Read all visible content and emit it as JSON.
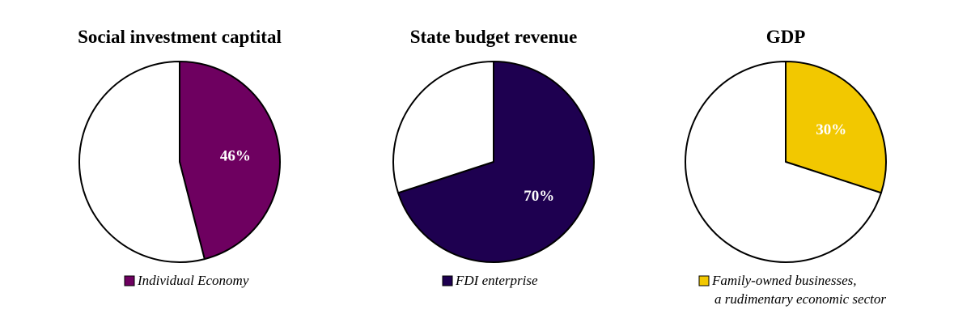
{
  "chart_data": [
    {
      "type": "pie",
      "title": "Social investment captital",
      "slices": [
        {
          "name": "Individual Economy",
          "value": 46,
          "label": "46%",
          "color": "#6e0060"
        },
        {
          "name": "",
          "value": 54,
          "label": "",
          "color": "#ffffff"
        }
      ],
      "legend": {
        "placement": "bottom",
        "entries": [
          {
            "lines": [
              "Individual Economy"
            ],
            "color": "#6e0060"
          }
        ]
      }
    },
    {
      "type": "pie",
      "title": "State budget revenue",
      "slices": [
        {
          "name": "FDI enterprise",
          "value": 70,
          "label": "70%",
          "color": "#1e0050"
        },
        {
          "name": "",
          "value": 30,
          "label": "",
          "color": "#ffffff"
        }
      ],
      "legend": {
        "placement": "bottom",
        "entries": [
          {
            "lines": [
              "FDI enterprise"
            ],
            "color": "#1e0050"
          }
        ]
      }
    },
    {
      "type": "pie",
      "title": "GDP",
      "slices": [
        {
          "name": "Family-owned businesses, a rudimentary economic sector",
          "value": 30,
          "label": "30%",
          "color": "#f2c800"
        },
        {
          "name": "",
          "value": 70,
          "label": "",
          "color": "#ffffff"
        }
      ],
      "legend": {
        "placement": "bottom",
        "entries": [
          {
            "lines": [
              "Family-owned businesses,",
              "a rudimentary economic sector"
            ],
            "color": "#f2c800"
          }
        ]
      }
    }
  ]
}
